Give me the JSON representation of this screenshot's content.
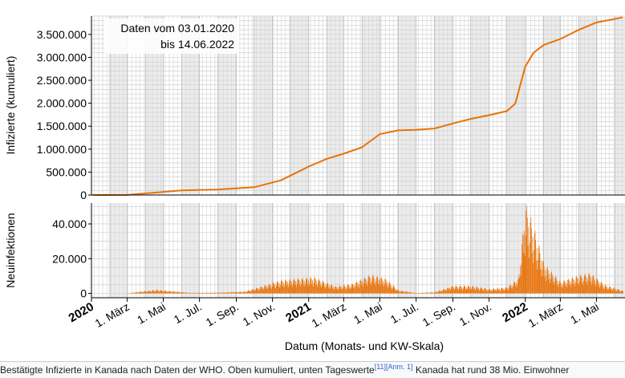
{
  "chart_data": [
    {
      "type": "line",
      "ylabel": "Infizierte (kumuliert)",
      "ylim": [
        0,
        3900000
      ],
      "yticks": [
        0,
        500000,
        1000000,
        1500000,
        2000000,
        2500000,
        3000000,
        3500000
      ],
      "ytick_labels": [
        "0",
        "500.000",
        "1.000.000",
        "1.500.000",
        "2.000.000",
        "2.500.000",
        "3.000.000",
        "3.500.000"
      ],
      "annotation": [
        "Daten vom 03.01.2020",
        "bis 14.06.2022"
      ],
      "color": "#e8730a",
      "x": [
        "2020-01-03",
        "2020-03-01",
        "2020-04-15",
        "2020-06-01",
        "2020-08-01",
        "2020-10-01",
        "2020-11-15",
        "2020-12-15",
        "2021-01-01",
        "2021-02-01",
        "2021-03-01",
        "2021-04-01",
        "2021-05-01",
        "2021-06-01",
        "2021-07-01",
        "2021-08-01",
        "2021-09-01",
        "2021-10-01",
        "2021-11-01",
        "2021-12-01",
        "2021-12-15",
        "2022-01-01",
        "2022-01-15",
        "2022-02-01",
        "2022-03-01",
        "2022-04-01",
        "2022-05-01",
        "2022-06-14"
      ],
      "values": [
        0,
        1000,
        50000,
        100000,
        120000,
        170000,
        320000,
        510000,
        620000,
        790000,
        900000,
        1040000,
        1330000,
        1410000,
        1420000,
        1450000,
        1560000,
        1660000,
        1740000,
        1830000,
        1990000,
        2800000,
        3100000,
        3270000,
        3400000,
        3600000,
        3760000,
        3870000
      ]
    },
    {
      "type": "bar",
      "ylabel": "Neuinfektionen",
      "ylim": [
        -2500,
        52000
      ],
      "yticks": [
        0,
        20000,
        40000
      ],
      "ytick_labels": [
        "0",
        "20.000",
        "40.000"
      ],
      "color": "#e8730a",
      "x": [
        "2020-01-03",
        "2020-03-01",
        "2020-03-20",
        "2020-04-20",
        "2020-05-15",
        "2020-06-15",
        "2020-08-01",
        "2020-09-15",
        "2020-10-15",
        "2020-11-15",
        "2020-12-15",
        "2021-01-10",
        "2021-02-15",
        "2021-03-15",
        "2021-04-15",
        "2021-05-10",
        "2021-06-01",
        "2021-07-01",
        "2021-08-01",
        "2021-09-01",
        "2021-10-01",
        "2021-11-01",
        "2021-12-01",
        "2021-12-20",
        "2022-01-01",
        "2022-01-15",
        "2022-02-01",
        "2022-03-01",
        "2022-04-01",
        "2022-04-20",
        "2022-05-15",
        "2022-06-14"
      ],
      "values": [
        0,
        0,
        800,
        1700,
        1100,
        300,
        400,
        900,
        3500,
        6200,
        7000,
        7600,
        3300,
        4500,
        8800,
        7000,
        1500,
        200,
        600,
        3600,
        3600,
        2100,
        2900,
        7000,
        42000,
        31000,
        14000,
        5500,
        8500,
        9500,
        4000,
        1300
      ]
    }
  ],
  "x_axis": {
    "label": "Datum (Monats- und KW-Skala)",
    "ticks": [
      {
        "date": "2020-01-01",
        "label": "2020",
        "bold": true
      },
      {
        "date": "2020-03-01",
        "label": "1. März",
        "bold": false
      },
      {
        "date": "2020-05-01",
        "label": "1. Mai",
        "bold": false
      },
      {
        "date": "2020-07-01",
        "label": "1. Jul.",
        "bold": false
      },
      {
        "date": "2020-09-01",
        "label": "1. Sep.",
        "bold": false
      },
      {
        "date": "2020-11-01",
        "label": "1. Nov.",
        "bold": false
      },
      {
        "date": "2021-01-01",
        "label": "2021",
        "bold": true
      },
      {
        "date": "2021-03-01",
        "label": "1. März",
        "bold": false
      },
      {
        "date": "2021-05-01",
        "label": "1. Mai",
        "bold": false
      },
      {
        "date": "2021-07-01",
        "label": "1. Jul.",
        "bold": false
      },
      {
        "date": "2021-09-01",
        "label": "1. Sep.",
        "bold": false
      },
      {
        "date": "2021-11-01",
        "label": "1. Nov.",
        "bold": false
      },
      {
        "date": "2022-01-01",
        "label": "2022",
        "bold": true
      },
      {
        "date": "2022-03-01",
        "label": "1. März",
        "bold": false
      },
      {
        "date": "2022-05-01",
        "label": "1. Mai",
        "bold": false
      }
    ]
  },
  "caption": {
    "text": "Bestätigte Infizierte in Kanada nach Daten der WHO. Oben kumuliert, unten Tageswerte",
    "ref1": "[11]",
    "ref2": "[Anm. 1]",
    "text2": " Kanada hat rund 38 Mio. Einwohner"
  }
}
